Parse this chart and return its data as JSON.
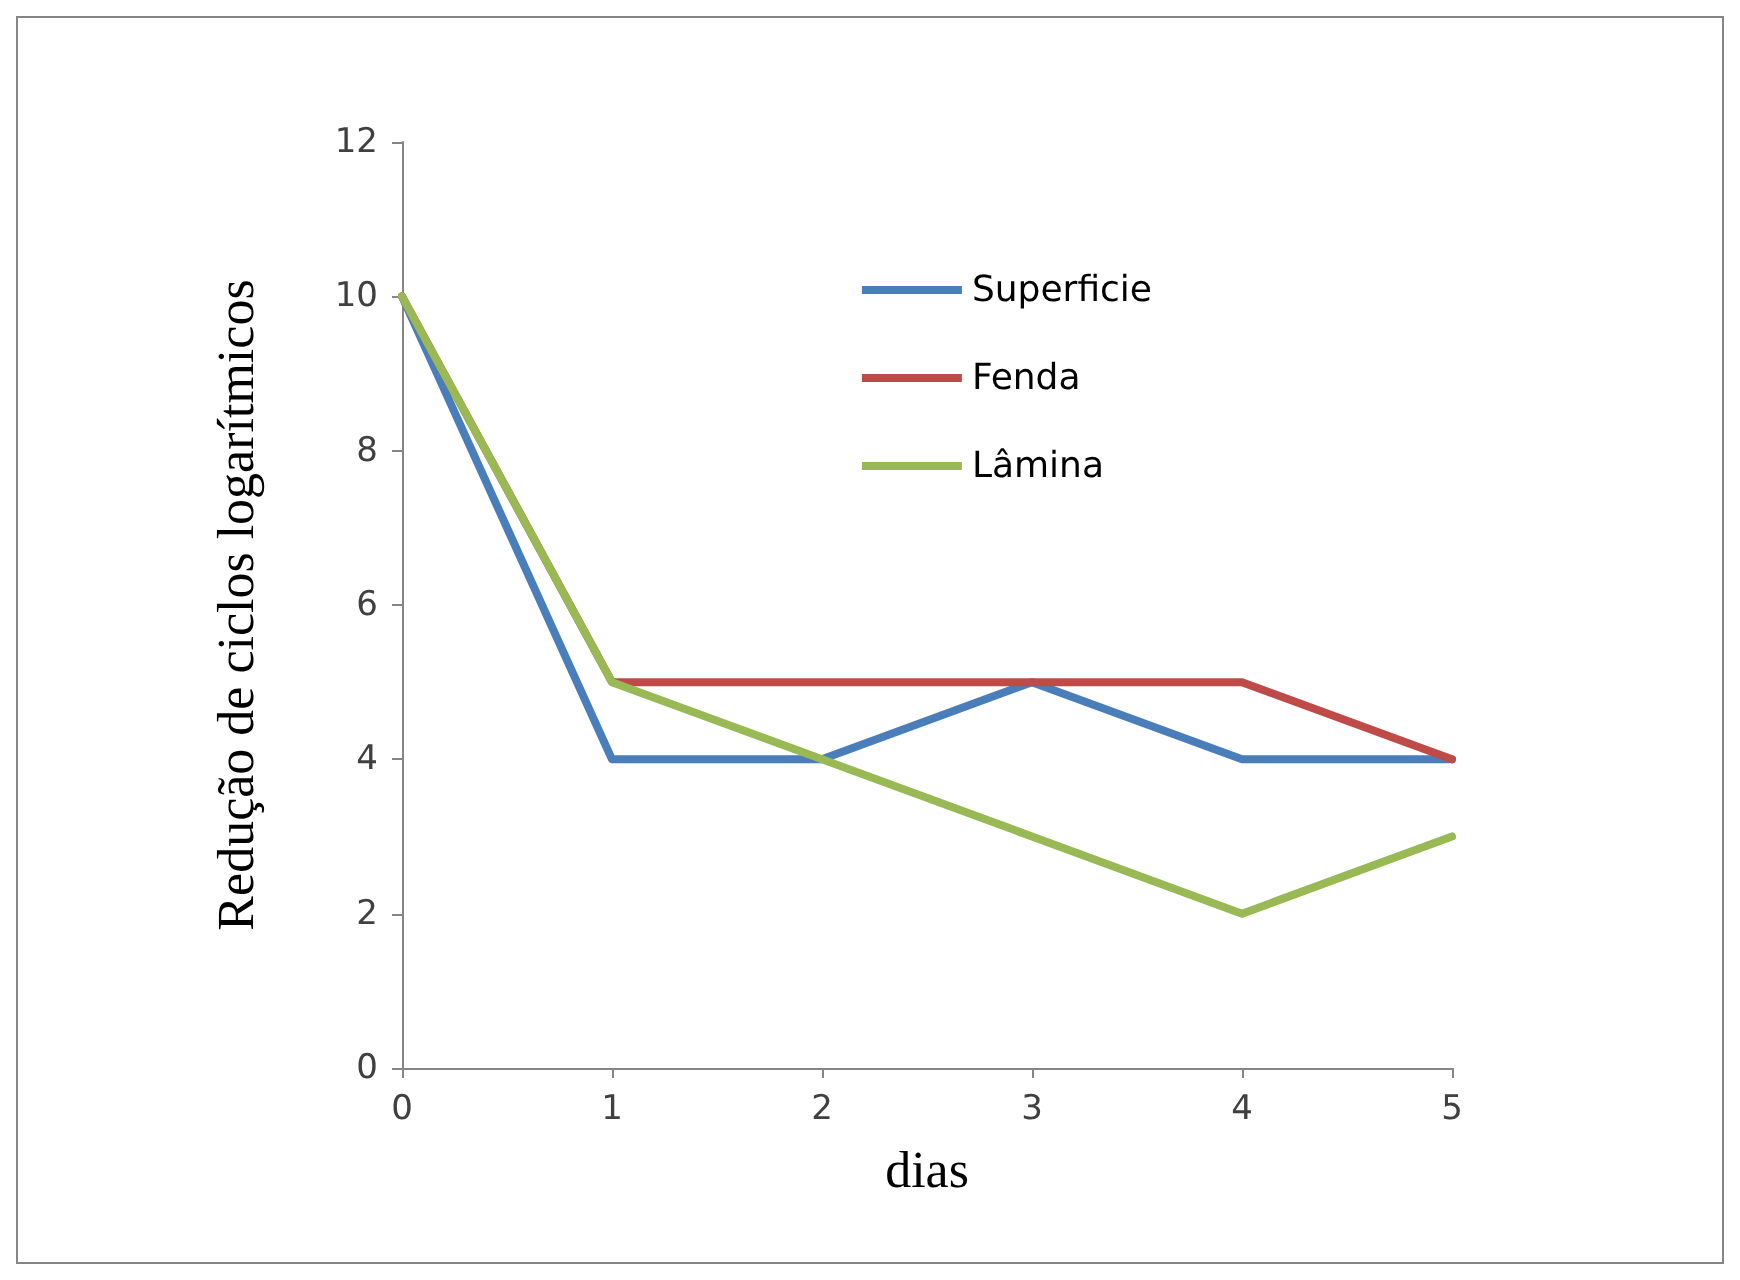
{
  "chart_data": {
    "type": "line",
    "xlabel": "dias",
    "ylabel": "Redução de ciclos logarítmicos",
    "x": [
      0,
      1,
      2,
      3,
      4,
      5
    ],
    "series": [
      {
        "name": "Superficie",
        "color": "#4a7ebb",
        "values": [
          10,
          4,
          4,
          5,
          4,
          4
        ]
      },
      {
        "name": "Fenda",
        "color": "#be4b48",
        "values": [
          10,
          5,
          5,
          5,
          5,
          4
        ]
      },
      {
        "name": "Lâmina",
        "color": "#98b954",
        "values": [
          10,
          5,
          4,
          3,
          2,
          3
        ]
      }
    ],
    "xlim": [
      0,
      5
    ],
    "xticks": [
      0,
      1,
      2,
      3,
      4,
      5
    ],
    "ylim": [
      0,
      12
    ],
    "yticks": [
      0,
      2,
      4,
      6,
      8,
      10,
      12
    ],
    "grid": false,
    "legend": "top right",
    "marker": "none",
    "line_style": "solid"
  }
}
